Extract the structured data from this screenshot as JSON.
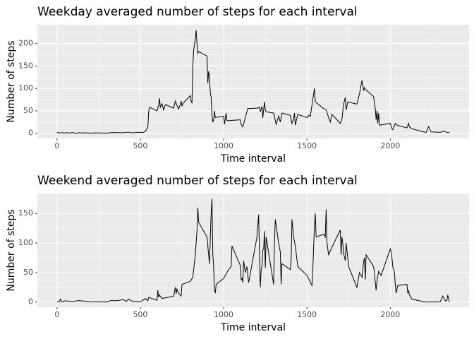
{
  "chart_data": [
    {
      "type": "line",
      "title": "Weekday averaged number of steps for each interval",
      "x_label": "Time interval",
      "y_label": "Number of steps",
      "color": "#000000",
      "grid": true,
      "xlim": [
        -117.75,
        2472.75
      ],
      "ylim": [
        -11.5,
        242
      ],
      "xticks": [
        0,
        500,
        1000,
        1500,
        2000
      ],
      "yticks": [
        0,
        50,
        100,
        150,
        200
      ],
      "x": [
        0,
        15,
        30,
        45,
        60,
        75,
        90,
        105,
        120,
        135,
        150,
        165,
        200,
        230,
        300,
        330,
        400,
        430,
        445,
        500,
        515,
        530,
        545,
        550,
        555,
        600,
        610,
        615,
        620,
        630,
        640,
        650,
        700,
        710,
        720,
        730,
        740,
        745,
        750,
        755,
        800,
        805,
        810,
        815,
        820,
        825,
        830,
        835,
        840,
        845,
        850,
        900,
        905,
        910,
        915,
        920,
        925,
        930,
        935,
        940,
        945,
        950,
        1000,
        1005,
        1015,
        1020,
        1100,
        1105,
        1115,
        1125,
        1135,
        1145,
        1200,
        1215,
        1220,
        1230,
        1235,
        1245,
        1250,
        1255,
        1300,
        1315,
        1330,
        1340,
        1350,
        1400,
        1410,
        1420,
        1425,
        1430,
        1445,
        1500,
        1510,
        1520,
        1535,
        1545,
        1550,
        1600,
        1615,
        1630,
        1640,
        1650,
        1700,
        1710,
        1720,
        1730,
        1735,
        1745,
        1800,
        1815,
        1830,
        1840,
        1845,
        1850,
        1900,
        1910,
        1915,
        1920,
        1925,
        1930,
        1935,
        2000,
        2010,
        2015,
        2030,
        2040,
        2100,
        2110,
        2115,
        2130,
        2200,
        2215,
        2230,
        2245,
        2300,
        2320,
        2340,
        2355
      ],
      "values": [
        2.3,
        0.5,
        1.5,
        0.8,
        1.2,
        0.3,
        1.8,
        0.7,
        0.2,
        1.5,
        0.6,
        1.1,
        0.3,
        0.9,
        0.4,
        1.6,
        1.2,
        2.6,
        0.9,
        2.2,
        1.5,
        3.8,
        14,
        47,
        58,
        50,
        62,
        78,
        58,
        66,
        52,
        64,
        56,
        72,
        62,
        54,
        65,
        72,
        60,
        66,
        84,
        70,
        68,
        150,
        185,
        198,
        210,
        230,
        200,
        178,
        182,
        172,
        112,
        138,
        125,
        90,
        80,
        40,
        25,
        30,
        50,
        35,
        38,
        20,
        45,
        28,
        30,
        20,
        14,
        28,
        42,
        55,
        56,
        58,
        48,
        60,
        34,
        70,
        52,
        48,
        45,
        20,
        38,
        25,
        45,
        40,
        22,
        32,
        45,
        18,
        42,
        35,
        40,
        38,
        75,
        100,
        70,
        55,
        52,
        35,
        25,
        42,
        22,
        32,
        65,
        80,
        52,
        70,
        65,
        88,
        118,
        95,
        102,
        98,
        82,
        55,
        30,
        50,
        22,
        45,
        18,
        22,
        10,
        8,
        22,
        18,
        12,
        22,
        14,
        10,
        3,
        2,
        15,
        3,
        2,
        5,
        2,
        1.5
      ]
    },
    {
      "type": "line",
      "title": "Weekend averaged number of steps for each interval",
      "x_label": "Time interval",
      "y_label": "Number of steps",
      "color": "#000000",
      "grid": true,
      "xlim": [
        -117.75,
        2472.75
      ],
      "ylim": [
        -8.75,
        183.75
      ],
      "xticks": [
        0,
        500,
        1000,
        1500,
        2000
      ],
      "yticks": [
        0,
        50,
        100,
        150
      ],
      "x": [
        0,
        15,
        20,
        30,
        45,
        100,
        130,
        200,
        300,
        330,
        345,
        400,
        415,
        430,
        445,
        500,
        515,
        530,
        545,
        550,
        600,
        605,
        610,
        615,
        630,
        700,
        710,
        715,
        720,
        730,
        745,
        750,
        800,
        815,
        830,
        840,
        845,
        850,
        900,
        915,
        920,
        925,
        930,
        935,
        940,
        945,
        950,
        955,
        1000,
        1030,
        1045,
        1050,
        1100,
        1105,
        1110,
        1115,
        1120,
        1130,
        1140,
        1145,
        1150,
        1200,
        1205,
        1210,
        1215,
        1220,
        1225,
        1230,
        1235,
        1240,
        1245,
        1250,
        1255,
        1300,
        1305,
        1310,
        1320,
        1330,
        1340,
        1345,
        1350,
        1400,
        1405,
        1410,
        1420,
        1430,
        1445,
        1500,
        1530,
        1535,
        1545,
        1550,
        1555,
        1600,
        1610,
        1615,
        1620,
        1630,
        1645,
        1700,
        1705,
        1710,
        1715,
        1720,
        1730,
        1735,
        1745,
        1750,
        1800,
        1815,
        1825,
        1830,
        1840,
        1845,
        1850,
        1855,
        1900,
        1905,
        1915,
        1920,
        1930,
        1945,
        2000,
        2005,
        2010,
        2015,
        2025,
        2030,
        2035,
        2045,
        2100,
        2105,
        2110,
        2115,
        2130,
        2200,
        2215,
        2245,
        2300,
        2315,
        2330,
        2340,
        2345,
        2355
      ],
      "values": [
        0.2,
        0.5,
        5,
        0.1,
        2,
        1,
        2.5,
        0.5,
        0.1,
        3,
        2,
        4,
        1,
        5,
        2,
        0.5,
        3,
        6,
        2,
        8,
        3,
        20,
        8,
        12,
        6,
        10,
        25,
        14,
        22,
        15,
        10,
        30,
        35,
        42,
        80,
        120,
        160,
        135,
        110,
        65,
        110,
        150,
        175,
        80,
        60,
        20,
        15,
        30,
        40,
        55,
        60,
        95,
        62,
        38,
        40,
        33,
        70,
        50,
        60,
        45,
        33,
        110,
        130,
        148,
        85,
        25,
        55,
        60,
        88,
        90,
        120,
        58,
        110,
        30,
        100,
        140,
        120,
        100,
        85,
        30,
        65,
        55,
        70,
        140,
        110,
        95,
        60,
        45,
        28,
        55,
        130,
        150,
        110,
        115,
        110,
        157,
        100,
        80,
        90,
        122,
        80,
        110,
        100,
        82,
        70,
        100,
        75,
        60,
        25,
        50,
        45,
        42,
        68,
        75,
        38,
        80,
        60,
        48,
        20,
        35,
        52,
        45,
        90,
        85,
        75,
        60,
        50,
        30,
        15,
        28,
        30,
        15,
        20,
        12,
        5,
        0.5,
        0.2,
        0,
        0.5,
        10,
        2,
        3,
        12,
        0
      ]
    }
  ]
}
